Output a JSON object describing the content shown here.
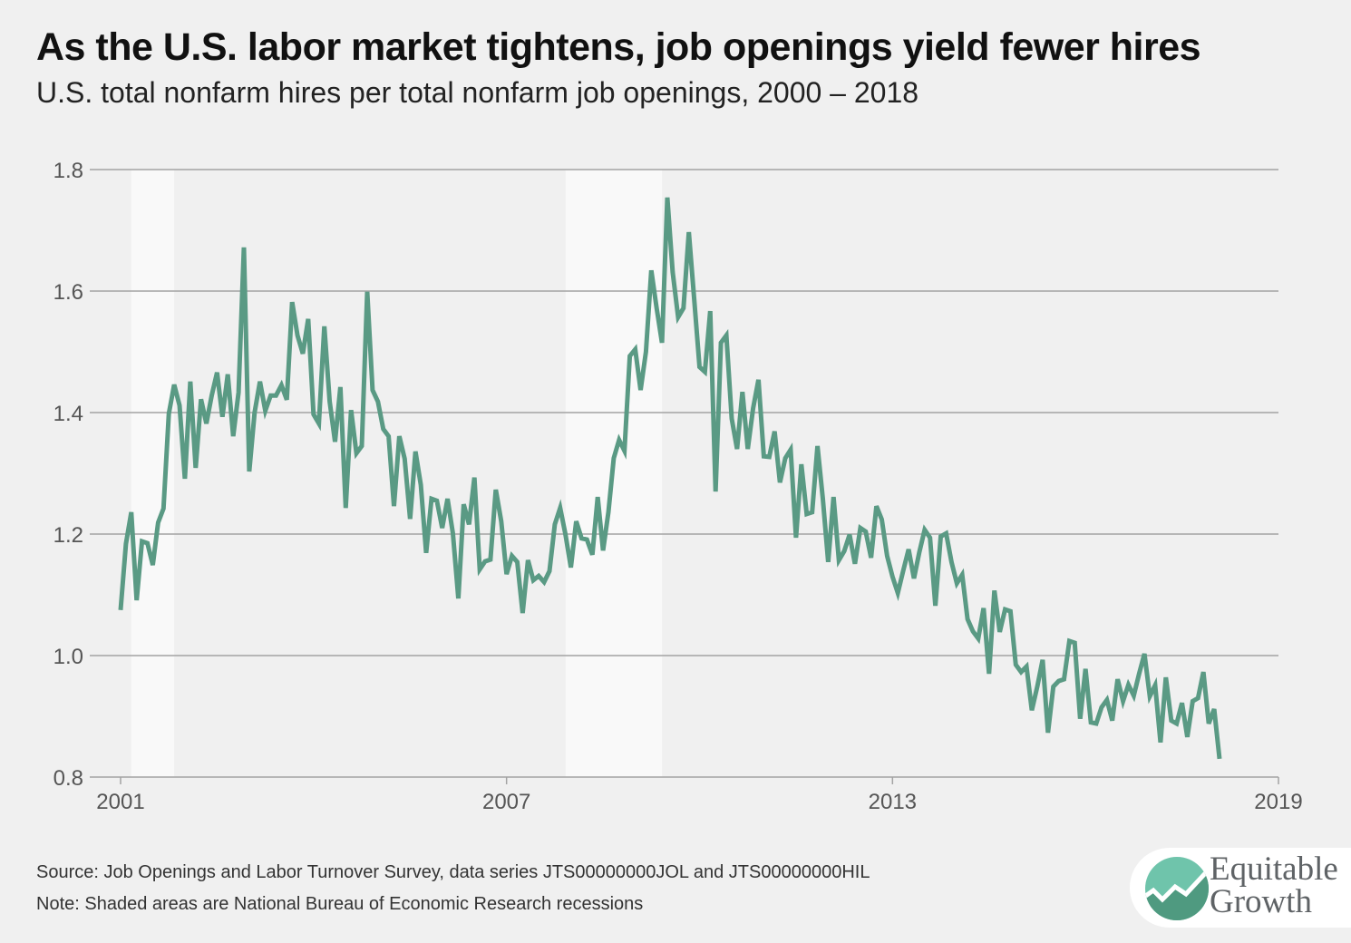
{
  "title": "As the U.S. labor market tightens, job openings yield fewer hires",
  "subtitle": "U.S. total nonfarm hires per total nonfarm job openings, 2000 – 2018",
  "footer": {
    "source": "Source: Job Openings and Labor Turnover Survey, data series JTS00000000JOL and JTS00000000HIL",
    "note": "Note: Shaded areas are National Bureau of Economic Research recessions"
  },
  "logo": {
    "line1": "Equitable",
    "line2": "Growth",
    "colors": [
      "#6fc4ab",
      "#4f9a80"
    ]
  },
  "chart_data": {
    "type": "line",
    "title": "As the U.S. labor market tightens, job openings yield fewer hires",
    "subtitle": "U.S. total nonfarm hires per total nonfarm job openings, 2000 – 2018",
    "xlabel": "",
    "ylabel": "",
    "xlim": [
      2001,
      2019
    ],
    "ylim": [
      0.8,
      1.8
    ],
    "x_ticks": [
      "2001",
      "2007",
      "2013",
      "2019"
    ],
    "y_ticks": [
      "0.8",
      "1.0",
      "1.2",
      "1.4",
      "1.6",
      "1.8"
    ],
    "grid": "horizontal",
    "legend": "none",
    "line_color": "#5a9a84",
    "recession_color": "#f9f9f9",
    "recessions": [
      [
        "2001-03",
        "2001-11"
      ],
      [
        "2007-12",
        "2009-06"
      ]
    ],
    "series": [
      {
        "start": "2001-01",
        "frequency": "monthly",
        "values": [
          1.075,
          1.184,
          1.236,
          1.091,
          1.188,
          1.185,
          1.149,
          1.219,
          1.242,
          1.398,
          1.446,
          1.412,
          1.291,
          1.451,
          1.309,
          1.422,
          1.382,
          1.428,
          1.466,
          1.393,
          1.463,
          1.361,
          1.433,
          1.672,
          1.303,
          1.4,
          1.451,
          1.403,
          1.428,
          1.428,
          1.445,
          1.421,
          1.582,
          1.527,
          1.497,
          1.554,
          1.397,
          1.382,
          1.542,
          1.418,
          1.352,
          1.442,
          1.243,
          1.404,
          1.333,
          1.345,
          1.599,
          1.437,
          1.418,
          1.373,
          1.361,
          1.246,
          1.361,
          1.324,
          1.225,
          1.336,
          1.281,
          1.169,
          1.258,
          1.255,
          1.21,
          1.258,
          1.201,
          1.094,
          1.249,
          1.216,
          1.293,
          1.142,
          1.155,
          1.158,
          1.273,
          1.221,
          1.134,
          1.164,
          1.154,
          1.07,
          1.157,
          1.124,
          1.131,
          1.121,
          1.139,
          1.216,
          1.243,
          1.199,
          1.145,
          1.221,
          1.193,
          1.191,
          1.166,
          1.261,
          1.173,
          1.236,
          1.325,
          1.355,
          1.337,
          1.493,
          1.504,
          1.437,
          1.5,
          1.634,
          1.572,
          1.515,
          1.754,
          1.631,
          1.557,
          1.572,
          1.697,
          1.587,
          1.475,
          1.467,
          1.567,
          1.27,
          1.515,
          1.527,
          1.39,
          1.34,
          1.434,
          1.34,
          1.407,
          1.454,
          1.328,
          1.327,
          1.369,
          1.285,
          1.325,
          1.339,
          1.194,
          1.315,
          1.233,
          1.236,
          1.345,
          1.258,
          1.154,
          1.261,
          1.157,
          1.172,
          1.199,
          1.151,
          1.21,
          1.204,
          1.161,
          1.246,
          1.224,
          1.164,
          1.13,
          1.103,
          1.14,
          1.175,
          1.127,
          1.17,
          1.207,
          1.194,
          1.082,
          1.196,
          1.201,
          1.154,
          1.119,
          1.133,
          1.06,
          1.04,
          1.028,
          1.078,
          0.97,
          1.107,
          1.039,
          1.076,
          1.073,
          0.985,
          0.973,
          0.982,
          0.91,
          0.949,
          0.993,
          0.873,
          0.949,
          0.958,
          0.961,
          1.024,
          1.021,
          0.896,
          0.978,
          0.89,
          0.888,
          0.915,
          0.927,
          0.893,
          0.961,
          0.925,
          0.952,
          0.934,
          0.97,
          1.003,
          0.933,
          0.951,
          0.857,
          0.964,
          0.893,
          0.888,
          0.922,
          0.866,
          0.925,
          0.93,
          0.973,
          0.888,
          0.912,
          0.83
        ]
      }
    ]
  }
}
